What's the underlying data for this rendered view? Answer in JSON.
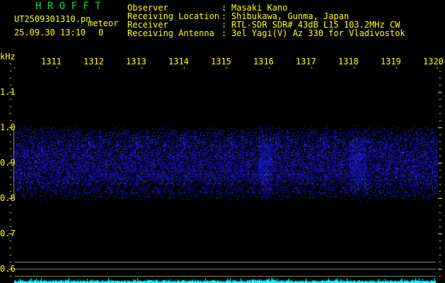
{
  "app": {
    "title": "H R O F F T"
  },
  "file": {
    "name": "UT2509301310.pn",
    "datetime": "25.09.30 13:10"
  },
  "meteor": {
    "label": "meteor",
    "count": "0"
  },
  "info": [
    {
      "label": "Observer",
      "value": "Masaki Kano"
    },
    {
      "label": "Receiving Location",
      "value": "Shibukawa, Gunma, Japan"
    },
    {
      "label": "Receiver",
      "value": "RTL-SDR SDR# 43dB L15 103.2MHz CW"
    },
    {
      "label": "Receiving Antenna",
      "value": "3el Yagi(V) Az 330 for Vladivostok"
    }
  ],
  "axis": {
    "unit": "kHz",
    "freq_labels": [
      "1311",
      "1312",
      "1313",
      "1314",
      "1315",
      "1316",
      "1317",
      "1318",
      "1319",
      "1320"
    ],
    "y_labels": [
      "1.1",
      "1.0",
      "0.9",
      "0.8",
      "0.7",
      "0.6"
    ]
  },
  "colors": {
    "text": "#ffff00",
    "title": "#00dd33",
    "signal": "#2020ff",
    "level": "#00ffff",
    "grid": "#888888"
  }
}
